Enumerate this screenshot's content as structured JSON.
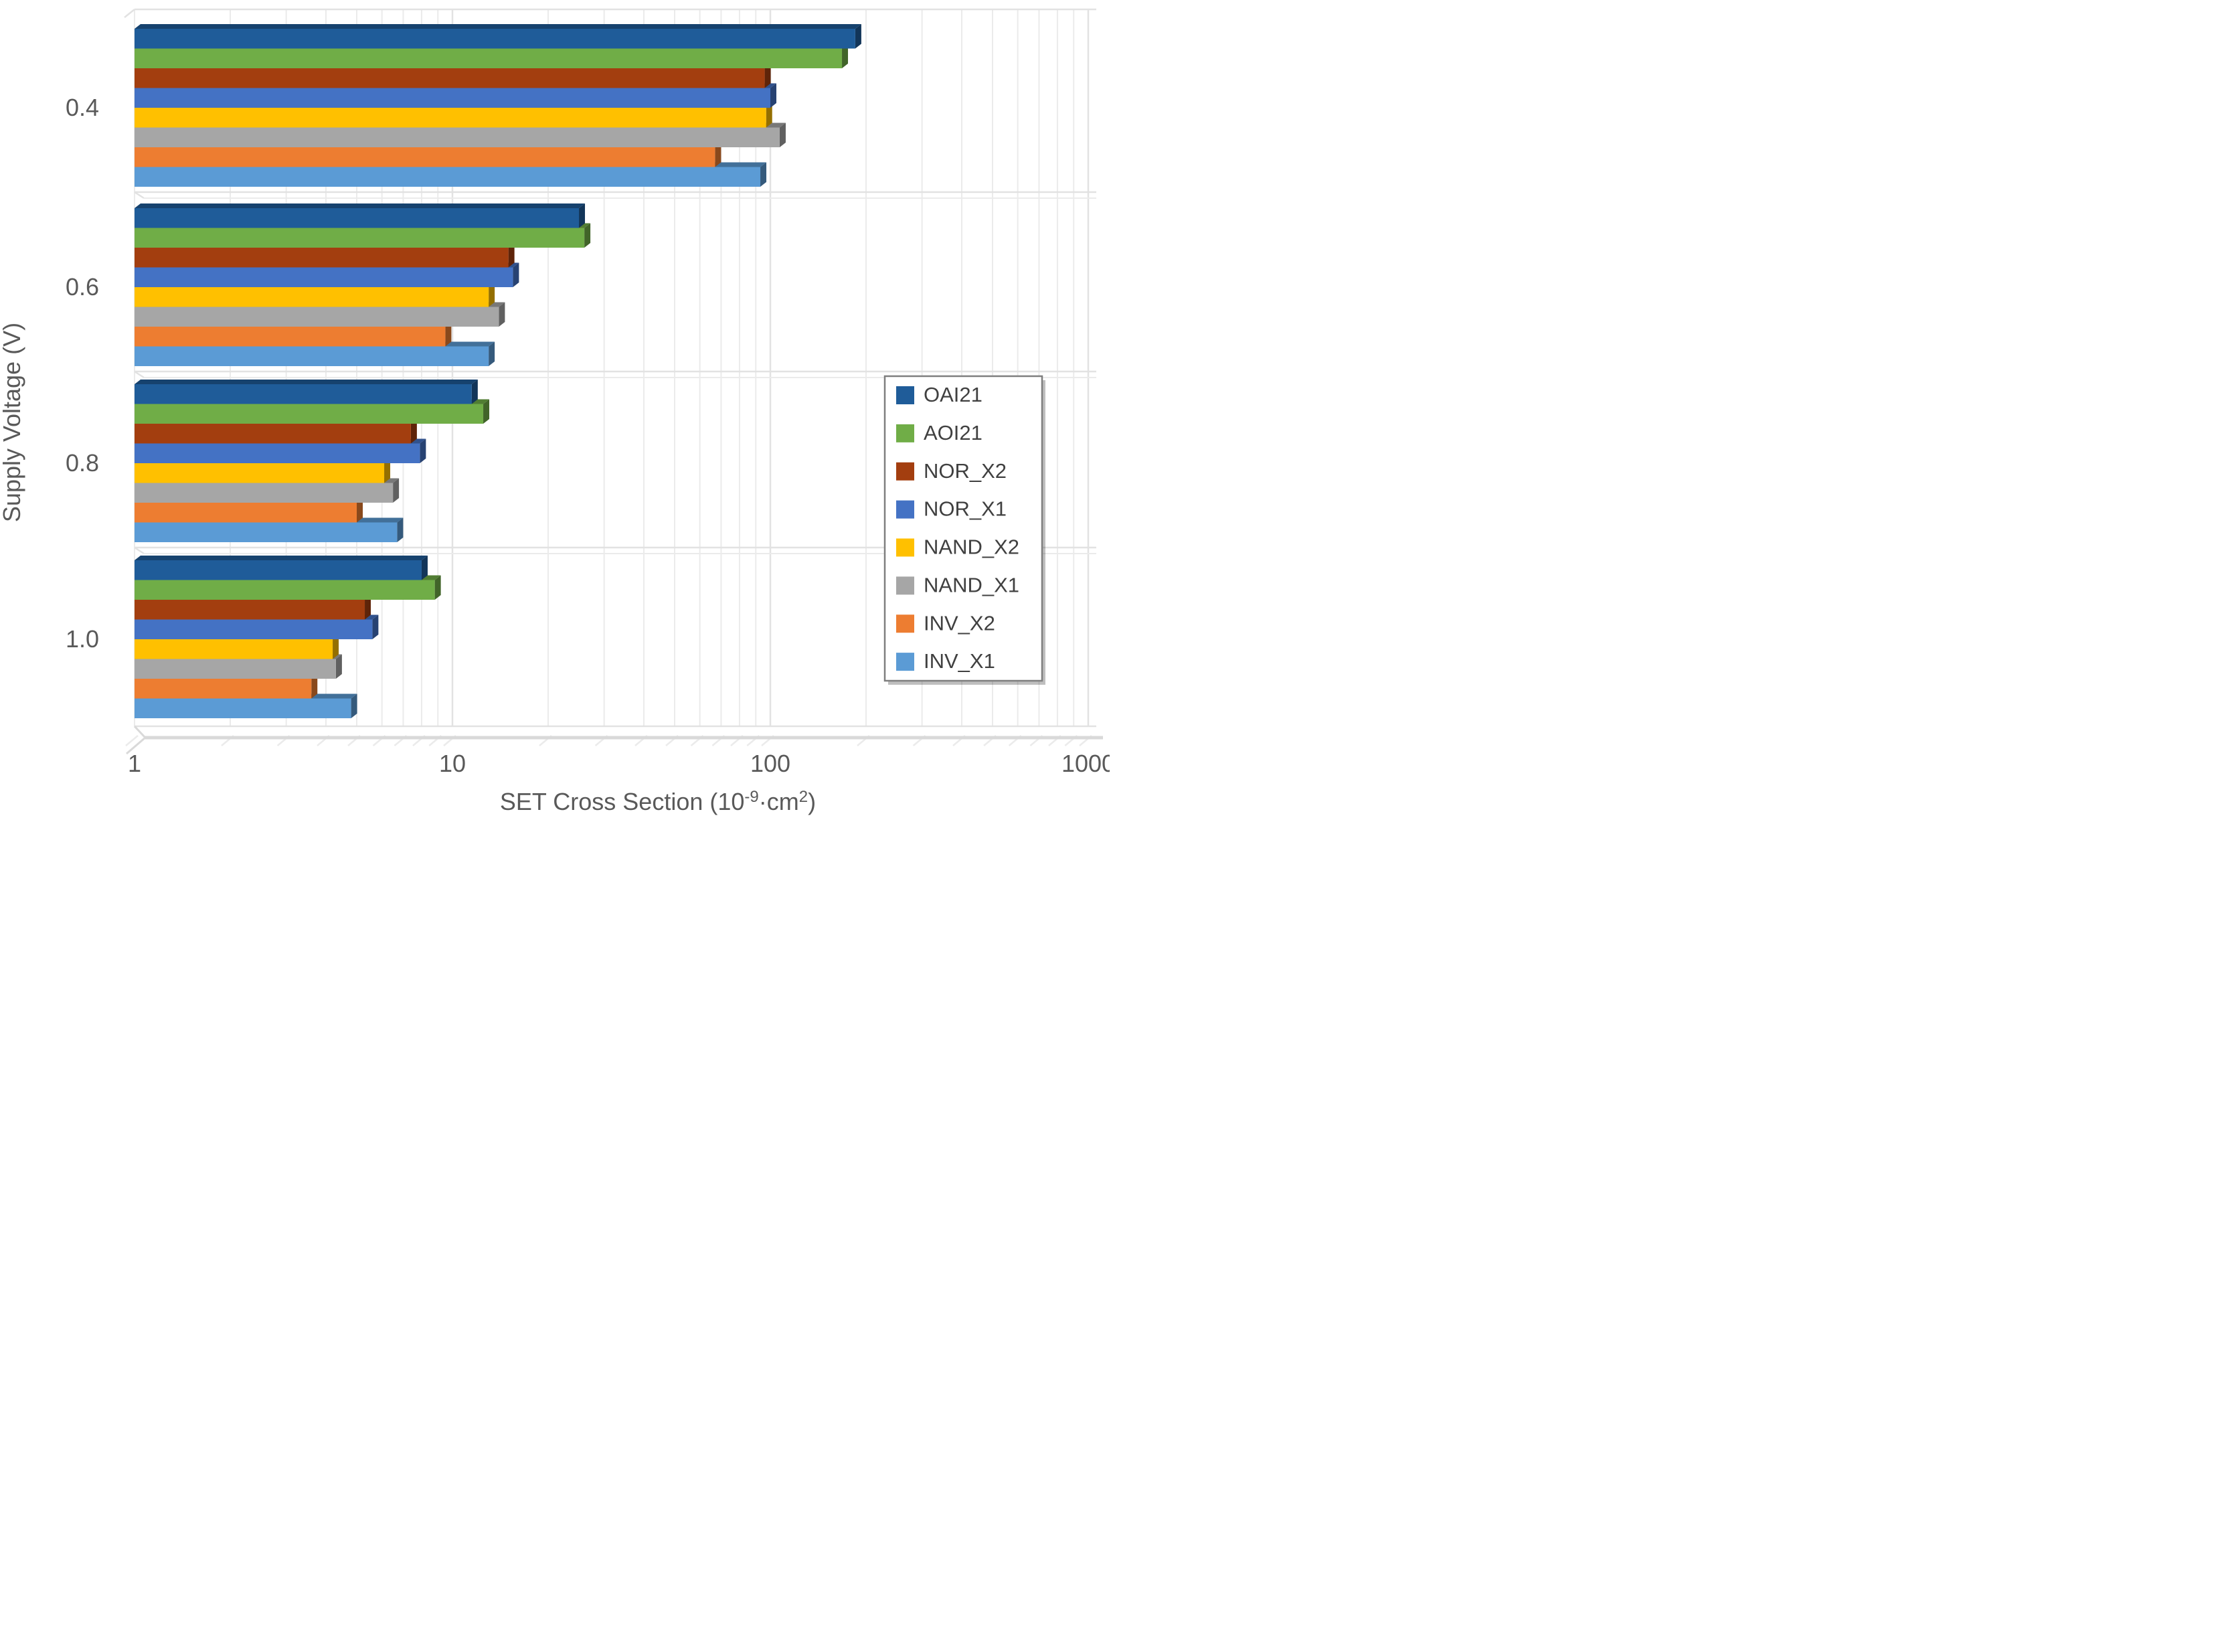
{
  "figure": {
    "type": "excel-style 3D horizontal bar chart, log x-axis",
    "background": "#ffffff",
    "text_color": "#595959",
    "grid_color": "#ebebeb",
    "grid_major_color": "#e2e2e2",
    "floor_color": "#d9d9d9",
    "legend_border_color": "#7f7f7f",
    "legend_text_color": "#404040"
  },
  "chart_data": {
    "type": "bar",
    "orientation": "horizontal",
    "x_scale": "log",
    "xlabel": "SET Cross Section (10⁻⁹·cm²)",
    "xlabel_parts": {
      "pre": "SET Cross Section (10",
      "sup1": "-9",
      "mid": "·cm",
      "sup2": "2",
      "post": ")"
    },
    "ylabel": "Supply Voltage  (V)",
    "categories": [
      "0.4",
      "0.6",
      "0.8",
      "1.0"
    ],
    "x_ticks": [
      "1",
      "10",
      "100",
      "1000"
    ],
    "xlim": [
      1,
      1000
    ],
    "grid": "vertical log gridlines, minor 2-9 each decade",
    "legend_position": "right-middle",
    "series": [
      {
        "name": "OAI21",
        "color": "#1f5c99",
        "values": [
          185,
          25,
          11.5,
          8.0
        ]
      },
      {
        "name": "AOI21",
        "color": "#70ad47",
        "values": [
          168,
          26,
          12.5,
          8.8
        ]
      },
      {
        "name": "NOR_X2",
        "color": "#a33e0f",
        "values": [
          96,
          15,
          7.4,
          5.3
        ]
      },
      {
        "name": "NOR_X1",
        "color": "#4472c4",
        "values": [
          100,
          15.5,
          7.9,
          5.6
        ]
      },
      {
        "name": "NAND_X2",
        "color": "#ffc000",
        "values": [
          97,
          13,
          6.1,
          4.2
        ]
      },
      {
        "name": "NAND_X1",
        "color": "#a6a6a6",
        "values": [
          107,
          14,
          6.5,
          4.3
        ]
      },
      {
        "name": "INV_X2",
        "color": "#ed7d31",
        "values": [
          67,
          9.5,
          5.0,
          3.6
        ]
      },
      {
        "name": "INV_X1",
        "color": "#5b9bd5",
        "values": [
          93,
          13,
          6.7,
          4.8
        ]
      }
    ]
  }
}
